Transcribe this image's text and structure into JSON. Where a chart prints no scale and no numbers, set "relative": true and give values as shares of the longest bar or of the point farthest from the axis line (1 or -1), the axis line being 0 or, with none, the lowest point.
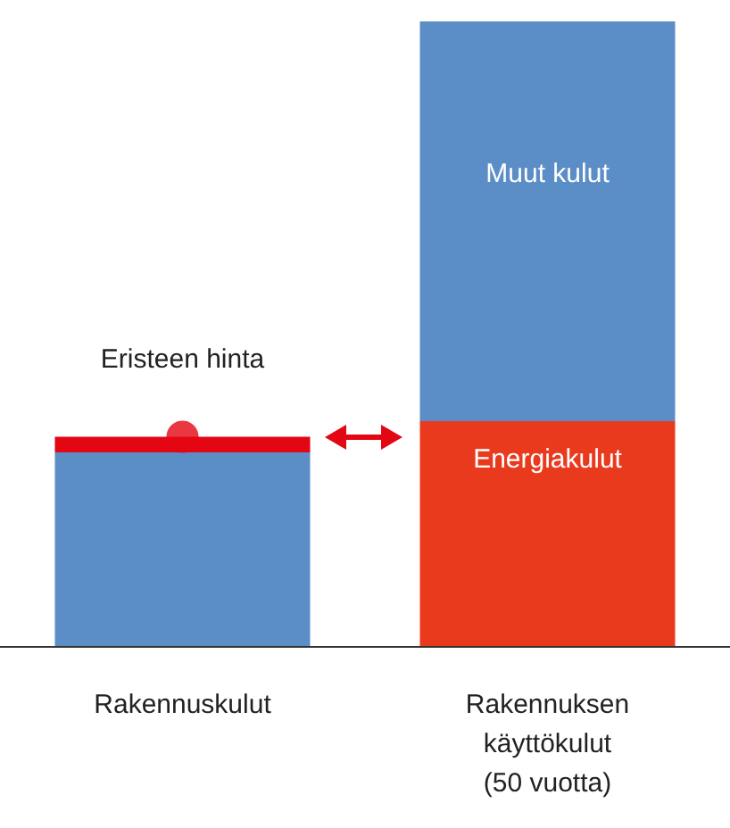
{
  "chart_data": {
    "type": "bar",
    "relative": true,
    "stacked": true,
    "tick_labels": "x",
    "categories": [
      "Rakennuskulut",
      "Rakennuksen\nkäyttökulut\n(50 vuotta)"
    ],
    "series": [
      {
        "color": "#5b8ec6",
        "values": [
          0.31,
          null
        ]
      },
      {
        "name": "Eristeen hinta",
        "color": "#e30613",
        "values": [
          0.025,
          null
        ]
      },
      {
        "name": "Energiakulut",
        "color": "#ea3a1e",
        "values": [
          null,
          0.36
        ]
      },
      {
        "name": "Muut kulut",
        "color": "#5b8ec6",
        "values": [
          null,
          0.64
        ]
      },
      {
        "type": "scatter",
        "color": "#e30613",
        "marker": "circle",
        "values": [
          0.335,
          null
        ]
      }
    ]
  }
}
